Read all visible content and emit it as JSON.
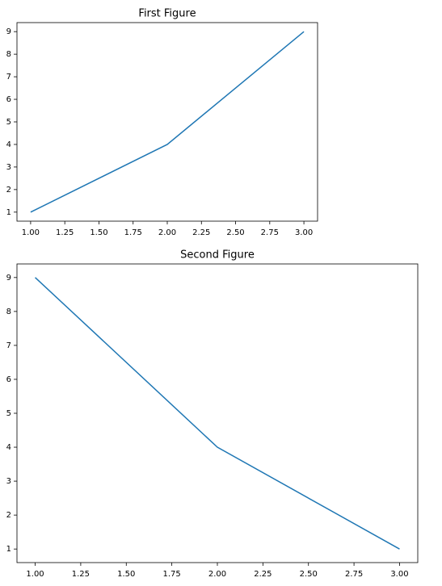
{
  "chart_data": [
    {
      "type": "line",
      "title": "First Figure",
      "x": [
        1,
        2,
        3
      ],
      "values": [
        1,
        4,
        9
      ],
      "color": "#1f77b4",
      "xlim": [
        0.9,
        3.1
      ],
      "ylim": [
        0.6,
        9.4
      ],
      "xticks": [
        {
          "value": 1,
          "label": "1.00"
        },
        {
          "value": 1.25,
          "label": "1.25"
        },
        {
          "value": 1.5,
          "label": "1.50"
        },
        {
          "value": 1.75,
          "label": "1.75"
        },
        {
          "value": 2,
          "label": "2.00"
        },
        {
          "value": 2.25,
          "label": "2.25"
        },
        {
          "value": 2.5,
          "label": "2.50"
        },
        {
          "value": 2.75,
          "label": "2.75"
        },
        {
          "value": 3,
          "label": "3.00"
        }
      ],
      "yticks": [
        1,
        2,
        3,
        4,
        5,
        6,
        7,
        8,
        9
      ]
    },
    {
      "type": "line",
      "title": "Second Figure",
      "x": [
        1,
        2,
        3
      ],
      "values": [
        9,
        4,
        1
      ],
      "color": "#1f77b4",
      "xlim": [
        0.9,
        3.1
      ],
      "ylim": [
        0.6,
        9.4
      ],
      "xticks": [
        {
          "value": 1,
          "label": "1.00"
        },
        {
          "value": 1.25,
          "label": "1.25"
        },
        {
          "value": 1.5,
          "label": "1.50"
        },
        {
          "value": 1.75,
          "label": "1.75"
        },
        {
          "value": 2,
          "label": "2.00"
        },
        {
          "value": 2.25,
          "label": "2.25"
        },
        {
          "value": 2.5,
          "label": "2.50"
        },
        {
          "value": 2.75,
          "label": "2.75"
        },
        {
          "value": 3,
          "label": "3.00"
        }
      ],
      "yticks": [
        1,
        2,
        3,
        4,
        5,
        6,
        7,
        8,
        9
      ]
    }
  ]
}
